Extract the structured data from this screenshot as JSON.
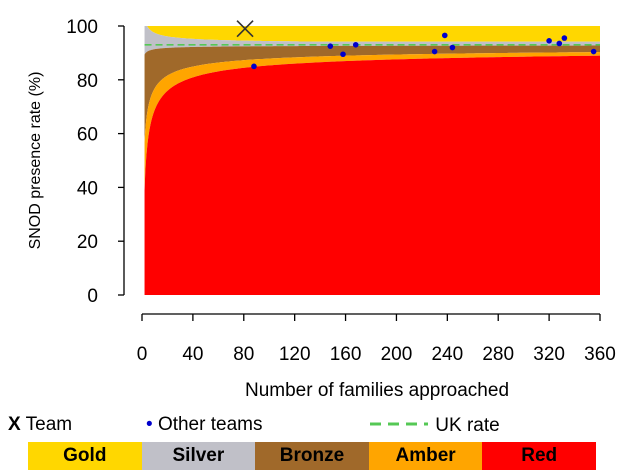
{
  "chart_data": {
    "type": "area",
    "xlabel": "Number of families approached",
    "ylabel": "SNOD presence rate (%)",
    "xlim": [
      0,
      360
    ],
    "ylim": [
      0,
      100
    ],
    "x_ticks": [
      "0",
      "40",
      "80",
      "120",
      "160",
      "200",
      "240",
      "280",
      "320",
      "360"
    ],
    "y_ticks": [
      "0",
      "20",
      "40",
      "60",
      "80",
      "100"
    ],
    "grid": false,
    "uk_rate": 93,
    "bands": [
      {
        "name": "Gold",
        "color": "#FFD700"
      },
      {
        "name": "Silver",
        "color": "#C0C0C8"
      },
      {
        "name": "Bronze",
        "color": "#A0692A"
      },
      {
        "name": "Amber",
        "color": "#FFA500"
      },
      {
        "name": "Red",
        "color": "#FF0000"
      }
    ],
    "team": {
      "x": 81,
      "y": 99
    },
    "other_teams": [
      {
        "x": 88,
        "y": 85
      },
      {
        "x": 148,
        "y": 92.5
      },
      {
        "x": 158,
        "y": 89.5
      },
      {
        "x": 168,
        "y": 93
      },
      {
        "x": 230,
        "y": 90.5
      },
      {
        "x": 238,
        "y": 96.5
      },
      {
        "x": 244,
        "y": 92
      },
      {
        "x": 320,
        "y": 94.5
      },
      {
        "x": 328,
        "y": 93.5
      },
      {
        "x": 332,
        "y": 95.5
      },
      {
        "x": 355,
        "y": 90.5
      }
    ]
  },
  "legend": {
    "team_symbol": "X",
    "team_label": "Team",
    "other_symbol": "•",
    "other_label": "Other teams",
    "uk_label": "UK rate"
  },
  "colors": {
    "team_marker": "#333333",
    "other_marker": "#0000CC",
    "uk_line": "#55C855"
  }
}
